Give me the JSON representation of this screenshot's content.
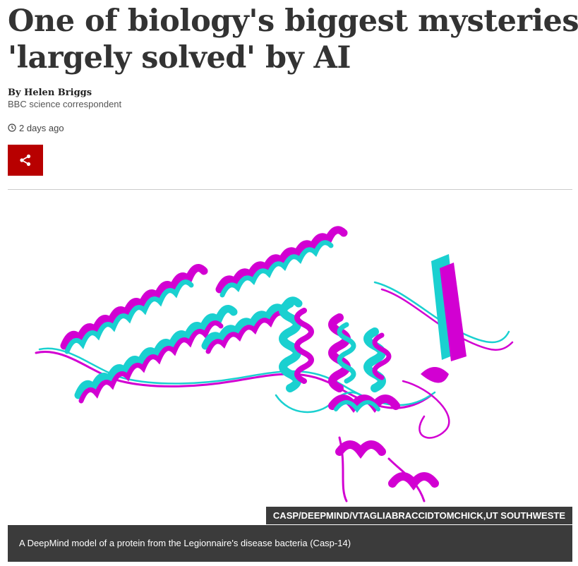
{
  "article": {
    "headline_line1": "One of biology's biggest mysteries",
    "headline_line2": "'largely solved' by AI",
    "author": "By Helen Briggs",
    "role": "BBC science correspondent",
    "timestamp": "2 days ago",
    "share_icon": "share-icon",
    "accent_color": "#b80000"
  },
  "figure": {
    "credit": "CASP/DEEPMIND/VTAGLIABRACCIDTOMCHICK,UT SOUTHWESTE",
    "caption": "A DeepMind model of a protein from the Legionnaire's disease bacteria (Casp-14)",
    "colors": {
      "magenta": "#d200d2",
      "cyan": "#1ad0d0"
    }
  }
}
